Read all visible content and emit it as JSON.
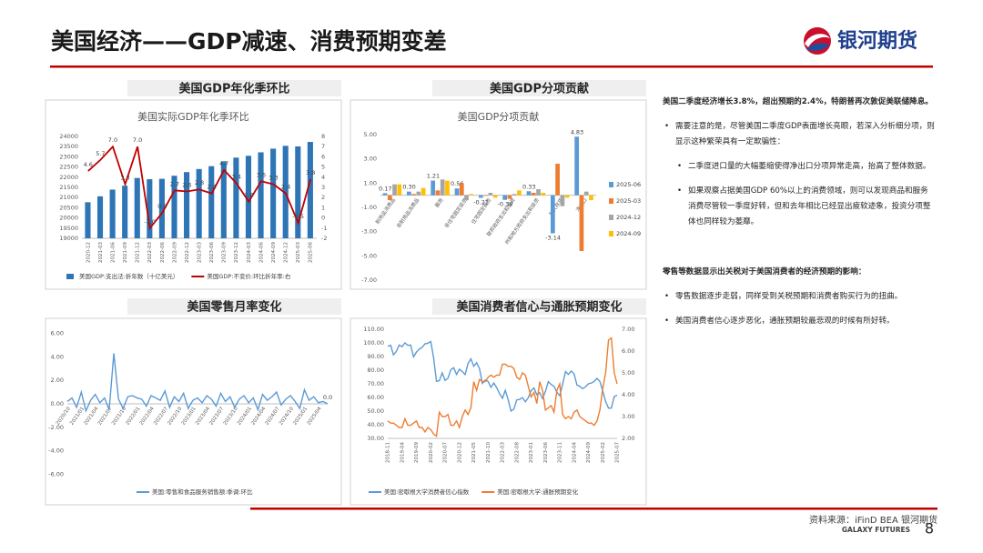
{
  "header": {
    "title": "美国经济——GDP减速、消费预期变差",
    "logo": "银河期货"
  },
  "footer": {
    "source": "资料来源：iFinD BEA 银河期货",
    "brand": "GALAXY FUTURES",
    "page": "8"
  },
  "commentary": [
    {
      "heading": "美国二季度经济增长3.8%，超出预期的2.4%，特朗普再次敦促美联储降息。",
      "points": [
        {
          "text": "需要注意的是，尽管美国二季度GDP表面增长亮眼，若深入分析细分项，则显示这种繁荣具有一定欺骗性：",
          "subpoints": [
            "二季度进口量的大幅萎缩使得净出口分项异常走高，抬高了整体数据。",
            "如果观察占据美国GDP 60%以上的消费领域，则可以发现商品和服务消费尽管较一季度好转，但和去年相比已经显出疲软迹象，投资分项整体也同样较为萎靡。"
          ]
        }
      ]
    },
    {
      "heading": "零售等数据显示出关税对于美国消费者的经济预期的影响：",
      "points": [
        {
          "text": "零售数据逐步走弱，同样受到关税预期和消费者购买行为的扭曲。"
        },
        {
          "text": "美国消费者信心逐步恶化，通胀预期较最悲观的时候有所好转。"
        }
      ]
    }
  ],
  "chart_data": [
    {
      "type": "bar",
      "heading": "美国GDP年化季环比",
      "title": "美国实际GDP年化季环比",
      "legend": "bottom",
      "grid": false,
      "categories": [
        "2020-12",
        "2021-03",
        "2021-06",
        "2021-09",
        "2021-12",
        "2022-03",
        "2022-06",
        "2022-09",
        "2022-12",
        "2023-03",
        "2023-06",
        "2023-09",
        "2023-12",
        "2024-03",
        "2024-06",
        "2024-09",
        "2024-12",
        "2025-03",
        "2025-06"
      ],
      "series": [
        {
          "name": "美国GDP:支出法:折年数（十亿美元）",
          "color": "#2e75b6",
          "values": [
            20770,
            21060,
            21390,
            21580,
            21960,
            21900,
            21920,
            22070,
            22250,
            22400,
            22540,
            22780,
            22960,
            23050,
            23220,
            23400,
            23540,
            23510,
            23730
          ]
        },
        {
          "name": "美国GDP:不变价:环比折年率:右",
          "type": "line",
          "axis": "y2",
          "color": "#c00000",
          "values": [
            4.6,
            5.7,
            7.0,
            3.3,
            7.0,
            -1.0,
            0.5,
            2.7,
            2.6,
            2.8,
            2.4,
            4.7,
            3.4,
            1.6,
            3.6,
            3.3,
            2.4,
            -0.5,
            3.8
          ],
          "value_labels": [
            "4.6",
            "5.7",
            "7.0",
            "3.3",
            "7.0",
            "-1.0",
            "0.5",
            "2.7",
            "2.6",
            "2.8",
            "2.4",
            "4.7",
            "3.4",
            "1.6",
            "3.6",
            "3.3",
            "2.4",
            "-0.5",
            "3.8"
          ]
        }
      ],
      "ylim": [
        19000,
        24000
      ],
      "yticks": [
        19000,
        19500,
        20000,
        20500,
        21000,
        21500,
        22000,
        22500,
        23000,
        23500,
        24000
      ],
      "y2lim": [
        -2,
        8
      ],
      "y2ticks": [
        -2,
        -1,
        0,
        1,
        2,
        3,
        4,
        5,
        6,
        7,
        8
      ]
    },
    {
      "type": "bar",
      "heading": "美国GDP分项贡献",
      "title": "美国GDP分项贡献",
      "legend": "right",
      "grid": false,
      "categories": [
        "耐用品消费品",
        "非耐用品消费品",
        "服务",
        "非住宅固定投资",
        "住宅固定投资",
        "联邦政府支出和投资",
        "州和地方政府支出和投资",
        "私人存货",
        "净出口"
      ],
      "series": [
        {
          "name": "2025-06",
          "color": "#5b9bd5",
          "values": [
            0.17,
            0.3,
            1.21,
            0.56,
            -0.21,
            -0.38,
            0.33,
            -3.14,
            4.83
          ],
          "value_labels": [
            "0.17",
            "0.30",
            "1.21",
            "0.56",
            "-0.21",
            "-0.38",
            "0.33",
            "-3.14",
            "4.83"
          ]
        },
        {
          "name": "2025-03",
          "color": "#ed7d31",
          "values": [
            -0.4,
            0.1,
            0.4,
            1.0,
            -0.05,
            -0.3,
            0.2,
            2.6,
            -4.6
          ]
        },
        {
          "name": "2024-12",
          "color": "#a5a5a5",
          "values": [
            0.9,
            0.3,
            1.3,
            -0.4,
            0.2,
            0.1,
            0.5,
            -0.9,
            0.3
          ]
        },
        {
          "name": "2024-09",
          "color": "#ffc000",
          "values": [
            0.9,
            0.6,
            1.2,
            0.1,
            -0.2,
            0.4,
            0.2,
            -0.2,
            -0.4
          ]
        }
      ],
      "ylim": [
        -7,
        5
      ],
      "yticks": [
        {
          "value": 5,
          "label": "5.00"
        },
        {
          "value": 3,
          "label": "3.00"
        },
        {
          "value": 1,
          "label": "1.00"
        },
        {
          "value": -1,
          "label": "-1.00"
        },
        {
          "value": -3,
          "label": "-3.00"
        },
        {
          "value": -5,
          "label": "-5.00"
        },
        {
          "value": -7,
          "label": "-7.00"
        }
      ]
    },
    {
      "type": "line",
      "heading": "美国零售月率变化",
      "legend": "bottom",
      "grid": false,
      "categories": [
        "2020/10",
        null,
        null,
        "2021/01",
        null,
        null,
        "2021/04",
        null,
        null,
        "2021/07",
        null,
        null,
        "2021/10",
        null,
        null,
        "2022/01",
        null,
        null,
        "2022/04",
        null,
        null,
        "2022/07",
        null,
        null,
        "2022/10",
        null,
        null,
        "2023/01",
        null,
        null,
        "2023/04",
        null,
        null,
        "2023/07",
        null,
        null,
        "2023/10",
        null,
        null,
        "2024/01",
        null,
        null,
        "2024/04",
        null,
        null,
        "2024/07",
        null,
        null,
        "2024/10",
        null,
        null,
        "2025/01",
        null,
        null,
        "2025/04",
        null,
        null
      ],
      "series": [
        {
          "name": "美国:零售和食品服务销售额:季调:环比",
          "color": "#5b9bd5",
          "values": [
            0.2,
            0.5,
            -0.3,
            1.0,
            -0.6,
            0.3,
            0.8,
            0.1,
            0.5,
            -0.5,
            4.3,
            0.4,
            -0.4,
            0.6,
            0.7,
            0.5,
            0.4,
            -0.2,
            0.7,
            0.5,
            0.3,
            1.1,
            -0.3,
            0.6,
            0.2,
            0.9,
            -0.4,
            0.3,
            0.5,
            0.1,
            0.7,
            0.4,
            -0.2,
            0.9,
            0.2,
            0.6,
            -0.3,
            0.4,
            0.7,
            0.1,
            0.5,
            -0.5,
            0.8,
            0.3,
            0.6,
            1.0,
            -0.1,
            0.4,
            0.7,
            0.2,
            -0.4,
            1.2,
            0.3,
            0.6,
            0.1,
            0.2,
            0.0
          ],
          "value_labels": [
            null,
            null,
            null,
            null,
            null,
            null,
            null,
            null,
            null,
            null,
            null,
            null,
            null,
            null,
            null,
            null,
            null,
            null,
            null,
            null,
            null,
            null,
            null,
            null,
            null,
            null,
            null,
            null,
            null,
            null,
            null,
            null,
            null,
            null,
            null,
            null,
            null,
            null,
            null,
            null,
            null,
            null,
            null,
            null,
            null,
            null,
            null,
            null,
            null,
            null,
            null,
            null,
            null,
            null,
            null,
            null,
            "0.0"
          ]
        }
      ],
      "ylim": [
        -6.5,
        6.5
      ],
      "yticks": [
        {
          "value": 6,
          "label": "6.00"
        },
        {
          "value": 4,
          "label": "4.00"
        },
        {
          "value": 2,
          "label": "2.00"
        },
        {
          "value": 0,
          "label": "0.00"
        },
        {
          "value": -2,
          "label": "-2.00"
        },
        {
          "value": -4,
          "label": "-4.00"
        },
        {
          "value": -6,
          "label": "-6.00"
        }
      ]
    },
    {
      "type": "line",
      "heading": "美国消费者信心与通胀预期变化",
      "legend": "bottom",
      "grid": false,
      "categories": [
        "2018-11",
        null,
        null,
        null,
        null,
        "2019-04",
        null,
        null,
        null,
        null,
        "2019-09",
        null,
        null,
        null,
        null,
        "2020-02",
        null,
        null,
        null,
        null,
        "2020-07",
        null,
        null,
        null,
        null,
        "2020-12",
        null,
        null,
        null,
        null,
        "2021-05",
        null,
        null,
        null,
        null,
        "2021-10",
        null,
        null,
        null,
        null,
        "2022-03",
        null,
        null,
        null,
        null,
        "2022-08",
        null,
        null,
        null,
        null,
        "2023-01",
        null,
        null,
        null,
        null,
        "2023-06",
        null,
        null,
        null,
        null,
        "2023-11",
        null,
        null,
        null,
        null,
        "2024-04",
        null,
        null,
        null,
        null,
        "2024-09",
        null,
        null,
        null,
        null,
        "2025-02",
        null,
        null,
        null,
        null,
        "2025-07"
      ],
      "series": [
        {
          "name": "美国:密歇根大学消费者信心指数",
          "color": "#5b9bd5",
          "values": [
            97.5,
            98.3,
            91.2,
            93.8,
            98.4,
            97.2,
            100.0,
            98.2,
            98.4,
            89.8,
            93.2,
            95.5,
            96.8,
            99.3,
            99.8,
            101.0,
            89.1,
            71.8,
            72.3,
            78.1,
            72.5,
            74.1,
            80.4,
            81.8,
            76.9,
            80.7,
            79.0,
            76.8,
            84.9,
            88.3,
            82.9,
            85.5,
            81.2,
            70.3,
            72.8,
            71.7,
            67.4,
            70.6,
            67.2,
            62.8,
            59.4,
            65.2,
            58.4,
            50.0,
            51.5,
            58.2,
            58.6,
            59.9,
            56.8,
            59.7,
            64.9,
            67.0,
            62.0,
            63.5,
            59.2,
            64.4,
            71.6,
            69.5,
            68.1,
            63.8,
            61.3,
            69.7,
            79.0,
            76.9,
            79.4,
            77.2,
            69.1,
            68.2,
            66.4,
            67.9,
            70.1,
            70.5,
            71.8,
            74.0,
            71.7,
            64.7,
            57.0,
            52.2,
            52.2,
            60.7,
            61.7
          ]
        },
        {
          "name": "美国:密歇根大学:通胀预期变化",
          "color": "#ed7d31",
          "axis": "y2",
          "values": [
            2.8,
            2.7,
            2.7,
            2.6,
            2.5,
            2.5,
            2.9,
            2.6,
            2.6,
            2.7,
            2.8,
            2.5,
            2.5,
            2.3,
            2.5,
            2.4,
            2.2,
            2.1,
            3.2,
            3.0,
            3.0,
            3.1,
            2.6,
            2.6,
            2.8,
            2.5,
            3.0,
            3.3,
            3.1,
            3.4,
            4.6,
            4.2,
            4.7,
            4.6,
            4.6,
            4.8,
            4.9,
            4.8,
            4.9,
            4.9,
            5.4,
            5.4,
            5.3,
            5.3,
            5.2,
            4.8,
            4.7,
            5.0,
            4.9,
            4.4,
            3.9,
            4.1,
            3.6,
            4.6,
            4.2,
            3.3,
            3.4,
            3.5,
            3.2,
            4.2,
            4.5,
            3.1,
            2.9,
            3.0,
            2.9,
            3.2,
            3.3,
            3.0,
            2.9,
            2.8,
            2.7,
            2.7,
            2.6,
            2.8,
            3.3,
            4.3,
            5.0,
            6.5,
            6.6,
            5.0,
            4.5
          ]
        }
      ],
      "ylim": [
        30,
        110
      ],
      "yticks": [
        {
          "value": 30,
          "label": "30.00"
        },
        {
          "value": 40,
          "label": "40.00"
        },
        {
          "value": 50,
          "label": "50.00"
        },
        {
          "value": 60,
          "label": "60.00"
        },
        {
          "value": 70,
          "label": "70.00"
        },
        {
          "value": 80,
          "label": "80.00"
        },
        {
          "value": 90,
          "label": "90.00"
        },
        {
          "value": 100,
          "label": "100.00"
        },
        {
          "value": 110,
          "label": "110.00"
        }
      ],
      "y2lim": [
        2,
        7
      ],
      "y2ticks": [
        {
          "value": 2,
          "label": "2.00"
        },
        {
          "value": 3,
          "label": "3.00"
        },
        {
          "value": 4,
          "label": "4.00"
        },
        {
          "value": 5,
          "label": "5.00"
        },
        {
          "value": 6,
          "label": "6.00"
        },
        {
          "value": 7,
          "label": "7.00"
        }
      ]
    }
  ]
}
